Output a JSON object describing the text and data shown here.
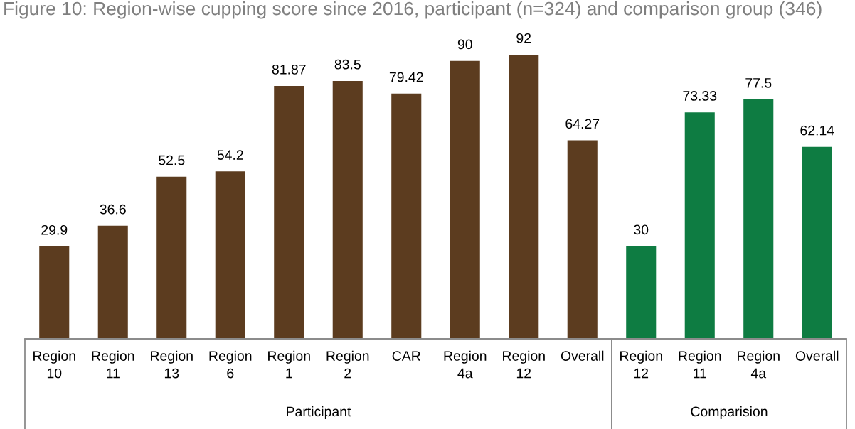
{
  "chart_data": [
    {
      "type": "bar",
      "title": "Figure 10: Region-wise cupping score since 2016, participant (n=324) and comparison group (346)",
      "categories": [
        "Region 10",
        "Region 11",
        "Region 13",
        "Region 6",
        "Region 1",
        "Region 2",
        "CAR",
        "Region 4a",
        "Region 12",
        "Overall"
      ],
      "values": [
        29.9,
        36.6,
        52.5,
        54.2,
        81.87,
        83.5,
        79.42,
        90,
        92,
        64.27
      ],
      "color": "#5c3c1f",
      "xlabel": "Participant",
      "data_labels": true,
      "tick_labels": "x"
    },
    {
      "type": "bar",
      "categories": [
        "Region 12",
        "Region 11",
        "Region 4a",
        "Overall"
      ],
      "values": [
        30,
        73.33,
        77.5,
        62.14
      ],
      "color": "#0e7c42",
      "xlabel": "Comparision",
      "data_labels": true,
      "tick_labels": "x"
    }
  ]
}
